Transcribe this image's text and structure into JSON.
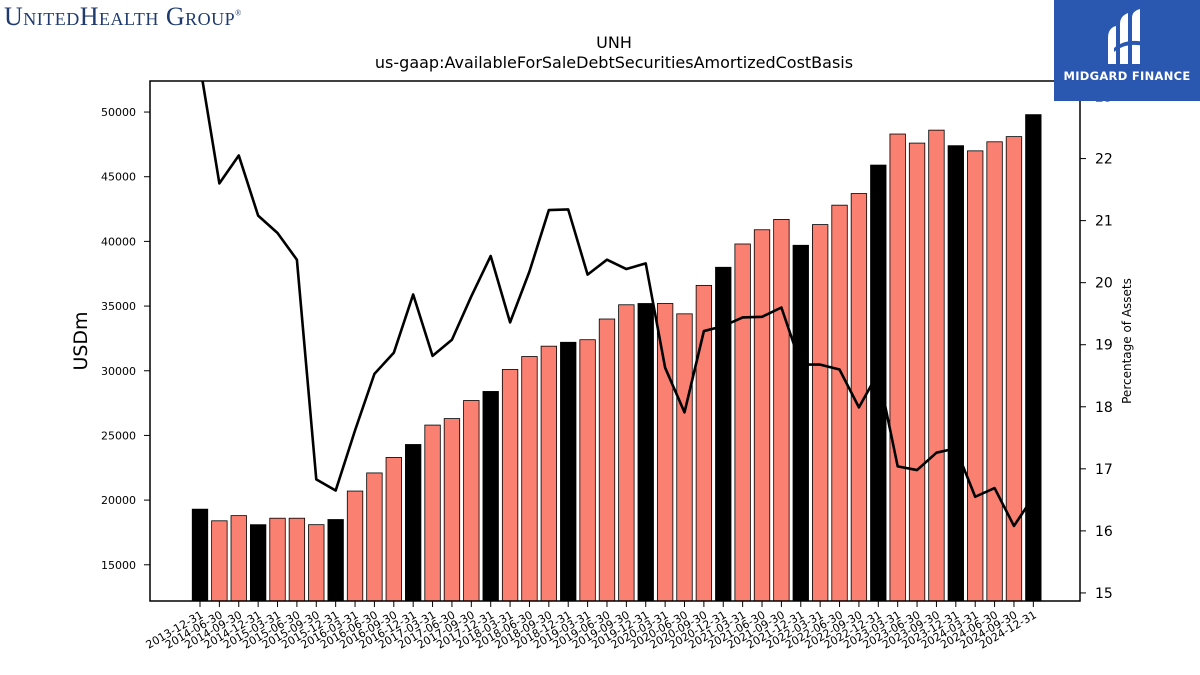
{
  "branding": {
    "company_logo_text": "UnitedHealth Group",
    "watermark_text": "MIDGARD FINANCE",
    "watermark_color": "#2a57b0"
  },
  "colors": {
    "bar_primary": "#fa8072",
    "bar_highlight": "#000000",
    "line": "#000000"
  },
  "chart_data": {
    "type": "bar",
    "title": "UNH",
    "subtitle": "us-gaap:AvailableForSaleDebtSecuritiesAmortizedCostBasis",
    "ylabel": "USDm",
    "y2label": "Percentage of Assets",
    "ylim": [
      12200,
      52400
    ],
    "y2lim": [
      14.87,
      23.25
    ],
    "yticks": [
      15000,
      20000,
      25000,
      30000,
      35000,
      40000,
      45000,
      50000
    ],
    "y2ticks": [
      15,
      16,
      17,
      18,
      19,
      20,
      21,
      22,
      23
    ],
    "categories": [
      "2013-12-31",
      "2014-06-30",
      "2014-09-30",
      "2014-12-31",
      "2015-03-31",
      "2015-06-30",
      "2015-09-30",
      "2015-12-31",
      "2016-03-31",
      "2016-06-30",
      "2016-09-30",
      "2016-12-31",
      "2017-03-31",
      "2017-06-30",
      "2017-09-30",
      "2017-12-31",
      "2018-03-31",
      "2018-06-30",
      "2018-09-30",
      "2018-12-31",
      "2019-03-31",
      "2019-06-30",
      "2019-09-30",
      "2019-12-31",
      "2020-03-31",
      "2020-06-30",
      "2020-09-30",
      "2020-12-31",
      "2021-03-31",
      "2021-06-30",
      "2021-09-30",
      "2021-12-31",
      "2022-03-31",
      "2022-06-30",
      "2022-09-30",
      "2022-12-31",
      "2023-03-31",
      "2023-06-30",
      "2023-09-30",
      "2023-12-31",
      "2024-03-31",
      "2024-06-30",
      "2024-09-30",
      "2024-12-31"
    ],
    "series": [
      {
        "kind": "bar",
        "axis": "left",
        "values": [
          19300,
          18400,
          18800,
          18100,
          18600,
          18600,
          18100,
          18500,
          20700,
          22100,
          23300,
          24300,
          25800,
          26300,
          27700,
          28400,
          30100,
          31100,
          31900,
          32200,
          32400,
          34000,
          35100,
          35200,
          35200,
          34400,
          36600,
          38000,
          39800,
          40900,
          41700,
          39700,
          41300,
          42800,
          43700,
          45900,
          48300,
          47600,
          48600,
          47400,
          47000,
          47700,
          48100,
          49800
        ],
        "highlight": [
          true,
          false,
          false,
          true,
          false,
          false,
          false,
          true,
          false,
          false,
          false,
          true,
          false,
          false,
          false,
          true,
          false,
          false,
          false,
          true,
          false,
          false,
          false,
          true,
          false,
          false,
          false,
          true,
          false,
          false,
          false,
          true,
          false,
          false,
          false,
          true,
          false,
          false,
          false,
          true,
          false,
          false,
          false,
          true
        ]
      },
      {
        "kind": "line",
        "axis": "right",
        "values": [
          23.5,
          21.6,
          22.05,
          21.08,
          20.8,
          20.37,
          16.83,
          16.65,
          17.62,
          18.53,
          18.87,
          19.81,
          18.82,
          19.08,
          19.78,
          20.43,
          19.36,
          20.18,
          21.17,
          21.18,
          20.13,
          20.37,
          20.22,
          20.31,
          18.63,
          17.91,
          19.22,
          19.3,
          19.44,
          19.45,
          19.6,
          18.68,
          18.68,
          18.6,
          17.99,
          18.55,
          17.04,
          16.98,
          17.26,
          17.33,
          16.55,
          16.69,
          16.08,
          16.55
        ]
      }
    ],
    "legend": "none",
    "grid": false
  }
}
